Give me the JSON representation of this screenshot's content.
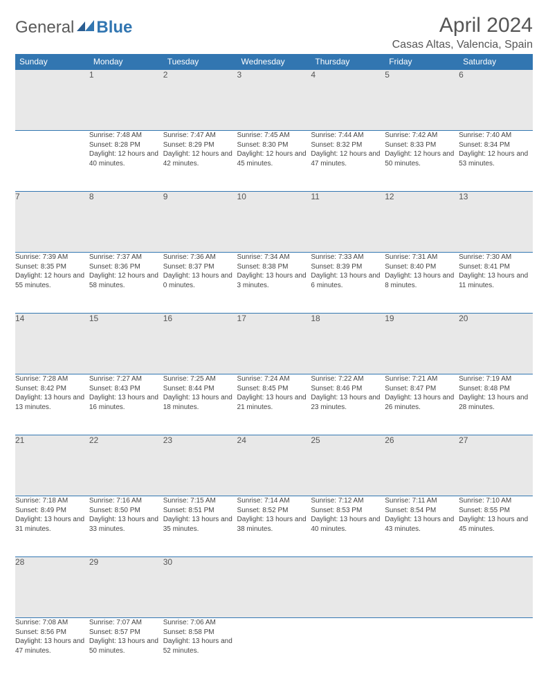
{
  "logo": {
    "part1": "General",
    "part2": "Blue"
  },
  "title": "April 2024",
  "location": "Casas Altas, Valencia, Spain",
  "colors": {
    "header_bg": "#3276b1",
    "header_fg": "#ffffff",
    "daynum_bg": "#e8e8e8",
    "text": "#444444",
    "page_bg": "#ffffff"
  },
  "weekdays": [
    "Sunday",
    "Monday",
    "Tuesday",
    "Wednesday",
    "Thursday",
    "Friday",
    "Saturday"
  ],
  "weeks": [
    [
      null,
      {
        "n": "1",
        "sr": "7:48 AM",
        "ss": "8:28 PM",
        "dl": "12 hours and 40 minutes."
      },
      {
        "n": "2",
        "sr": "7:47 AM",
        "ss": "8:29 PM",
        "dl": "12 hours and 42 minutes."
      },
      {
        "n": "3",
        "sr": "7:45 AM",
        "ss": "8:30 PM",
        "dl": "12 hours and 45 minutes."
      },
      {
        "n": "4",
        "sr": "7:44 AM",
        "ss": "8:32 PM",
        "dl": "12 hours and 47 minutes."
      },
      {
        "n": "5",
        "sr": "7:42 AM",
        "ss": "8:33 PM",
        "dl": "12 hours and 50 minutes."
      },
      {
        "n": "6",
        "sr": "7:40 AM",
        "ss": "8:34 PM",
        "dl": "12 hours and 53 minutes."
      }
    ],
    [
      {
        "n": "7",
        "sr": "7:39 AM",
        "ss": "8:35 PM",
        "dl": "12 hours and 55 minutes."
      },
      {
        "n": "8",
        "sr": "7:37 AM",
        "ss": "8:36 PM",
        "dl": "12 hours and 58 minutes."
      },
      {
        "n": "9",
        "sr": "7:36 AM",
        "ss": "8:37 PM",
        "dl": "13 hours and 0 minutes."
      },
      {
        "n": "10",
        "sr": "7:34 AM",
        "ss": "8:38 PM",
        "dl": "13 hours and 3 minutes."
      },
      {
        "n": "11",
        "sr": "7:33 AM",
        "ss": "8:39 PM",
        "dl": "13 hours and 6 minutes."
      },
      {
        "n": "12",
        "sr": "7:31 AM",
        "ss": "8:40 PM",
        "dl": "13 hours and 8 minutes."
      },
      {
        "n": "13",
        "sr": "7:30 AM",
        "ss": "8:41 PM",
        "dl": "13 hours and 11 minutes."
      }
    ],
    [
      {
        "n": "14",
        "sr": "7:28 AM",
        "ss": "8:42 PM",
        "dl": "13 hours and 13 minutes."
      },
      {
        "n": "15",
        "sr": "7:27 AM",
        "ss": "8:43 PM",
        "dl": "13 hours and 16 minutes."
      },
      {
        "n": "16",
        "sr": "7:25 AM",
        "ss": "8:44 PM",
        "dl": "13 hours and 18 minutes."
      },
      {
        "n": "17",
        "sr": "7:24 AM",
        "ss": "8:45 PM",
        "dl": "13 hours and 21 minutes."
      },
      {
        "n": "18",
        "sr": "7:22 AM",
        "ss": "8:46 PM",
        "dl": "13 hours and 23 minutes."
      },
      {
        "n": "19",
        "sr": "7:21 AM",
        "ss": "8:47 PM",
        "dl": "13 hours and 26 minutes."
      },
      {
        "n": "20",
        "sr": "7:19 AM",
        "ss": "8:48 PM",
        "dl": "13 hours and 28 minutes."
      }
    ],
    [
      {
        "n": "21",
        "sr": "7:18 AM",
        "ss": "8:49 PM",
        "dl": "13 hours and 31 minutes."
      },
      {
        "n": "22",
        "sr": "7:16 AM",
        "ss": "8:50 PM",
        "dl": "13 hours and 33 minutes."
      },
      {
        "n": "23",
        "sr": "7:15 AM",
        "ss": "8:51 PM",
        "dl": "13 hours and 35 minutes."
      },
      {
        "n": "24",
        "sr": "7:14 AM",
        "ss": "8:52 PM",
        "dl": "13 hours and 38 minutes."
      },
      {
        "n": "25",
        "sr": "7:12 AM",
        "ss": "8:53 PM",
        "dl": "13 hours and 40 minutes."
      },
      {
        "n": "26",
        "sr": "7:11 AM",
        "ss": "8:54 PM",
        "dl": "13 hours and 43 minutes."
      },
      {
        "n": "27",
        "sr": "7:10 AM",
        "ss": "8:55 PM",
        "dl": "13 hours and 45 minutes."
      }
    ],
    [
      {
        "n": "28",
        "sr": "7:08 AM",
        "ss": "8:56 PM",
        "dl": "13 hours and 47 minutes."
      },
      {
        "n": "29",
        "sr": "7:07 AM",
        "ss": "8:57 PM",
        "dl": "13 hours and 50 minutes."
      },
      {
        "n": "30",
        "sr": "7:06 AM",
        "ss": "8:58 PM",
        "dl": "13 hours and 52 minutes."
      },
      null,
      null,
      null,
      null
    ]
  ],
  "labels": {
    "sunrise": "Sunrise:",
    "sunset": "Sunset:",
    "daylight": "Daylight:"
  }
}
